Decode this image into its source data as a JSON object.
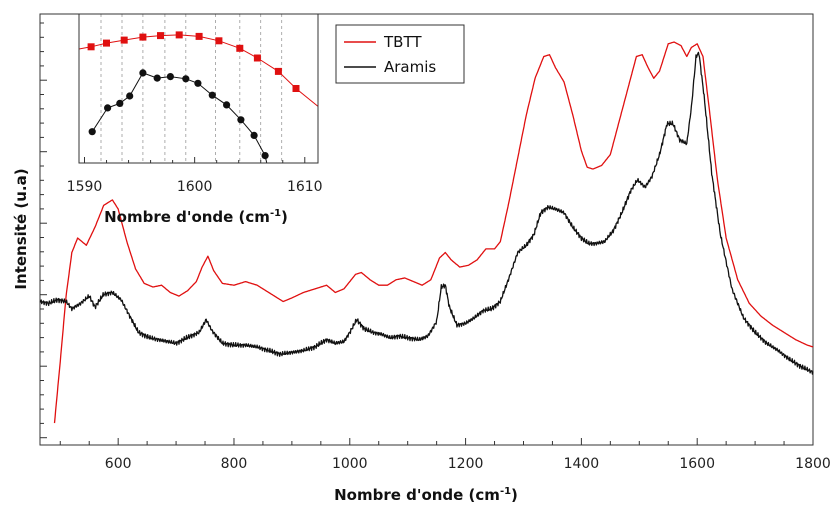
{
  "chart_data": [
    {
      "type": "line",
      "xlabel": "Nombre d'onde (cm-1)",
      "xlabel_base": "Nombre d'onde (cm",
      "xlabel_sup": "-1",
      "xlabel_close": ")",
      "ylabel": "Intensité (u.a)",
      "xlim": [
        465,
        1800
      ],
      "ylim": [
        0,
        1
      ],
      "x_ticks": [
        600,
        800,
        1000,
        1200,
        1400,
        1600,
        1800
      ],
      "y_tick_labels_shown": false,
      "grid": false,
      "legend_position": "top-left of plot, right of inset",
      "series": [
        {
          "name": "TBTT",
          "color": "#e01010",
          "points": [
            [
              490,
              -0.05
            ],
            [
              500,
              0.12
            ],
            [
              510,
              0.3
            ],
            [
              520,
              0.42
            ],
            [
              530,
              0.46
            ],
            [
              545,
              0.44
            ],
            [
              560,
              0.49
            ],
            [
              575,
              0.55
            ],
            [
              590,
              0.565
            ],
            [
              600,
              0.54
            ],
            [
              615,
              0.45
            ],
            [
              630,
              0.375
            ],
            [
              645,
              0.335
            ],
            [
              660,
              0.325
            ],
            [
              675,
              0.33
            ],
            [
              690,
              0.31
            ],
            [
              705,
              0.3
            ],
            [
              720,
              0.315
            ],
            [
              735,
              0.34
            ],
            [
              745,
              0.38
            ],
            [
              755,
              0.41
            ],
            [
              765,
              0.37
            ],
            [
              780,
              0.335
            ],
            [
              800,
              0.33
            ],
            [
              820,
              0.34
            ],
            [
              840,
              0.33
            ],
            [
              860,
              0.31
            ],
            [
              885,
              0.285
            ],
            [
              900,
              0.295
            ],
            [
              920,
              0.31
            ],
            [
              940,
              0.32
            ],
            [
              960,
              0.33
            ],
            [
              975,
              0.31
            ],
            [
              990,
              0.32
            ],
            [
              1010,
              0.36
            ],
            [
              1020,
              0.365
            ],
            [
              1035,
              0.345
            ],
            [
              1050,
              0.33
            ],
            [
              1065,
              0.33
            ],
            [
              1080,
              0.345
            ],
            [
              1095,
              0.35
            ],
            [
              1110,
              0.34
            ],
            [
              1125,
              0.33
            ],
            [
              1140,
              0.345
            ],
            [
              1155,
              0.405
            ],
            [
              1165,
              0.42
            ],
            [
              1175,
              0.4
            ],
            [
              1190,
              0.38
            ],
            [
              1205,
              0.385
            ],
            [
              1220,
              0.4
            ],
            [
              1235,
              0.43
            ],
            [
              1250,
              0.43
            ],
            [
              1260,
              0.45
            ],
            [
              1275,
              0.56
            ],
            [
              1290,
              0.68
            ],
            [
              1305,
              0.8
            ],
            [
              1320,
              0.9
            ],
            [
              1335,
              0.96
            ],
            [
              1345,
              0.965
            ],
            [
              1355,
              0.93
            ],
            [
              1370,
              0.89
            ],
            [
              1385,
              0.8
            ],
            [
              1400,
              0.7
            ],
            [
              1410,
              0.655
            ],
            [
              1420,
              0.65
            ],
            [
              1435,
              0.66
            ],
            [
              1450,
              0.69
            ],
            [
              1465,
              0.78
            ],
            [
              1480,
              0.87
            ],
            [
              1495,
              0.96
            ],
            [
              1505,
              0.965
            ],
            [
              1515,
              0.93
            ],
            [
              1525,
              0.9
            ],
            [
              1535,
              0.92
            ],
            [
              1550,
              0.995
            ],
            [
              1560,
              1.0
            ],
            [
              1572,
              0.99
            ],
            [
              1582,
              0.96
            ],
            [
              1590,
              0.985
            ],
            [
              1600,
              0.995
            ],
            [
              1610,
              0.96
            ],
            [
              1622,
              0.8
            ],
            [
              1635,
              0.62
            ],
            [
              1650,
              0.46
            ],
            [
              1670,
              0.345
            ],
            [
              1690,
              0.28
            ],
            [
              1710,
              0.245
            ],
            [
              1730,
              0.22
            ],
            [
              1750,
              0.2
            ],
            [
              1770,
              0.18
            ],
            [
              1790,
              0.165
            ],
            [
              1800,
              0.16
            ]
          ]
        },
        {
          "name": "Aramis",
          "color": "#111111",
          "points": [
            [
              465,
              0.285
            ],
            [
              480,
              0.28
            ],
            [
              495,
              0.29
            ],
            [
              510,
              0.285
            ],
            [
              520,
              0.265
            ],
            [
              535,
              0.28
            ],
            [
              550,
              0.3
            ],
            [
              560,
              0.27
            ],
            [
              575,
              0.305
            ],
            [
              590,
              0.31
            ],
            [
              605,
              0.29
            ],
            [
              620,
              0.245
            ],
            [
              635,
              0.2
            ],
            [
              655,
              0.185
            ],
            [
              670,
              0.18
            ],
            [
              685,
              0.175
            ],
            [
              700,
              0.17
            ],
            [
              712,
              0.18
            ],
            [
              725,
              0.19
            ],
            [
              740,
              0.2
            ],
            [
              752,
              0.235
            ],
            [
              762,
              0.205
            ],
            [
              780,
              0.17
            ],
            [
              800,
              0.165
            ],
            [
              820,
              0.165
            ],
            [
              840,
              0.16
            ],
            [
              860,
              0.15
            ],
            [
              880,
              0.14
            ],
            [
              900,
              0.145
            ],
            [
              920,
              0.15
            ],
            [
              940,
              0.16
            ],
            [
              960,
              0.18
            ],
            [
              975,
              0.17
            ],
            [
              990,
              0.175
            ],
            [
              1000,
              0.2
            ],
            [
              1012,
              0.235
            ],
            [
              1025,
              0.21
            ],
            [
              1040,
              0.2
            ],
            [
              1055,
              0.195
            ],
            [
              1070,
              0.185
            ],
            [
              1085,
              0.19
            ],
            [
              1100,
              0.185
            ],
            [
              1120,
              0.18
            ],
            [
              1135,
              0.19
            ],
            [
              1150,
              0.23
            ],
            [
              1158,
              0.325
            ],
            [
              1165,
              0.33
            ],
            [
              1172,
              0.27
            ],
            [
              1185,
              0.22
            ],
            [
              1200,
              0.225
            ],
            [
              1215,
              0.24
            ],
            [
              1230,
              0.26
            ],
            [
              1245,
              0.265
            ],
            [
              1260,
              0.285
            ],
            [
              1275,
              0.35
            ],
            [
              1290,
              0.42
            ],
            [
              1305,
              0.44
            ],
            [
              1318,
              0.47
            ],
            [
              1330,
              0.53
            ],
            [
              1342,
              0.545
            ],
            [
              1355,
              0.54
            ],
            [
              1370,
              0.53
            ],
            [
              1385,
              0.49
            ],
            [
              1400,
              0.46
            ],
            [
              1412,
              0.445
            ],
            [
              1425,
              0.445
            ],
            [
              1440,
              0.45
            ],
            [
              1455,
              0.48
            ],
            [
              1470,
              0.53
            ],
            [
              1485,
              0.59
            ],
            [
              1497,
              0.62
            ],
            [
              1510,
              0.6
            ],
            [
              1522,
              0.63
            ],
            [
              1535,
              0.69
            ],
            [
              1548,
              0.775
            ],
            [
              1558,
              0.775
            ],
            [
              1570,
              0.73
            ],
            [
              1582,
              0.72
            ],
            [
              1590,
              0.82
            ],
            [
              1598,
              0.96
            ],
            [
              1603,
              0.97
            ],
            [
              1612,
              0.85
            ],
            [
              1625,
              0.64
            ],
            [
              1640,
              0.47
            ],
            [
              1660,
              0.32
            ],
            [
              1680,
              0.24
            ],
            [
              1700,
              0.2
            ],
            [
              1720,
              0.17
            ],
            [
              1740,
              0.15
            ],
            [
              1760,
              0.125
            ],
            [
              1780,
              0.105
            ],
            [
              1800,
              0.09
            ]
          ]
        }
      ]
    },
    {
      "type": "line",
      "inset": true,
      "xlabel": "Nombre d'onde (cm-1)",
      "xlabel_base": "Nombre d'onde (cm",
      "xlabel_sup": "-1",
      "xlabel_close": ")",
      "xlim": [
        1589.5,
        1611.2
      ],
      "x_ticks": [
        1590,
        1600,
        1610
      ],
      "vertical_gridlines": [
        1591.5,
        1593.4,
        1595.3,
        1597.3,
        1599.2,
        1601.9,
        1604.1,
        1606.0,
        1607.9
      ],
      "series": [
        {
          "name": "TBTT",
          "color": "#e01010",
          "marker": "square",
          "points": [
            [
              1590.6,
              0.78
            ],
            [
              1592.0,
              0.805
            ],
            [
              1593.6,
              0.825
            ],
            [
              1595.3,
              0.845
            ],
            [
              1596.9,
              0.855
            ],
            [
              1598.6,
              0.86
            ],
            [
              1600.4,
              0.85
            ],
            [
              1602.2,
              0.82
            ],
            [
              1604.1,
              0.77
            ],
            [
              1605.7,
              0.705
            ],
            [
              1607.6,
              0.615
            ],
            [
              1609.2,
              0.5
            ]
          ]
        },
        {
          "name": "Aramis",
          "color": "#111111",
          "marker": "circle",
          "points": [
            [
              1590.7,
              0.21
            ],
            [
              1592.1,
              0.37
            ],
            [
              1593.2,
              0.4
            ],
            [
              1594.1,
              0.45
            ],
            [
              1595.3,
              0.605
            ],
            [
              1596.6,
              0.57
            ],
            [
              1597.8,
              0.58
            ],
            [
              1599.2,
              0.565
            ],
            [
              1600.3,
              0.535
            ],
            [
              1601.6,
              0.455
            ],
            [
              1602.9,
              0.39
            ],
            [
              1604.2,
              0.29
            ],
            [
              1605.4,
              0.185
            ],
            [
              1606.4,
              0.05
            ]
          ]
        }
      ]
    }
  ]
}
